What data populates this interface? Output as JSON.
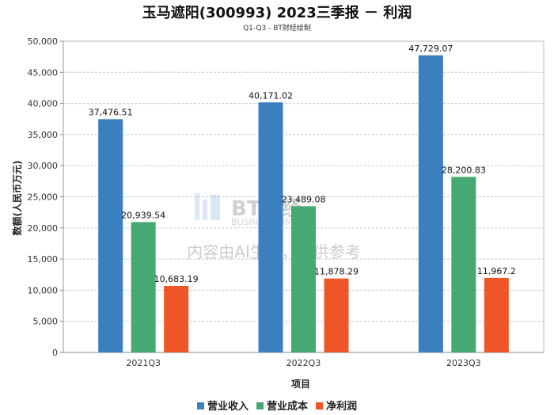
{
  "header": {
    "title": "玉马遮阳(300993) 2023三季报 － 利润",
    "subtitle": "Q1-Q3 - BT财经绘制"
  },
  "watermark": {
    "logo_text": "BT财经",
    "sub_text": "BUSINESS TIMES",
    "notice": "内容由AI生成，仅供参考"
  },
  "chart_data": {
    "type": "bar",
    "xlabel": "项目",
    "ylabel": "数额(人民币万元)",
    "ylim": [
      0,
      50000
    ],
    "ytick_step": 5000,
    "grid": true,
    "legend_position": "bottom",
    "categories": [
      "2021Q3",
      "2022Q3",
      "2023Q3"
    ],
    "series": [
      {
        "name": "营业收入",
        "color": "#3b7fc0",
        "values": [
          37476.51,
          40171.02,
          47729.07
        ],
        "labels": [
          "37,476.51",
          "40,171.02",
          "47,729.07"
        ]
      },
      {
        "name": "营业成本",
        "color": "#46a872",
        "values": [
          20939.54,
          23489.08,
          28200.83
        ],
        "labels": [
          "20,939.54",
          "23,489.08",
          "28,200.83"
        ]
      },
      {
        "name": "净利润",
        "color": "#ee5527",
        "values": [
          10683.19,
          11878.29,
          11967.2
        ],
        "labels": [
          "10,683.19",
          "11,878.29",
          "11,967.2"
        ]
      }
    ]
  }
}
